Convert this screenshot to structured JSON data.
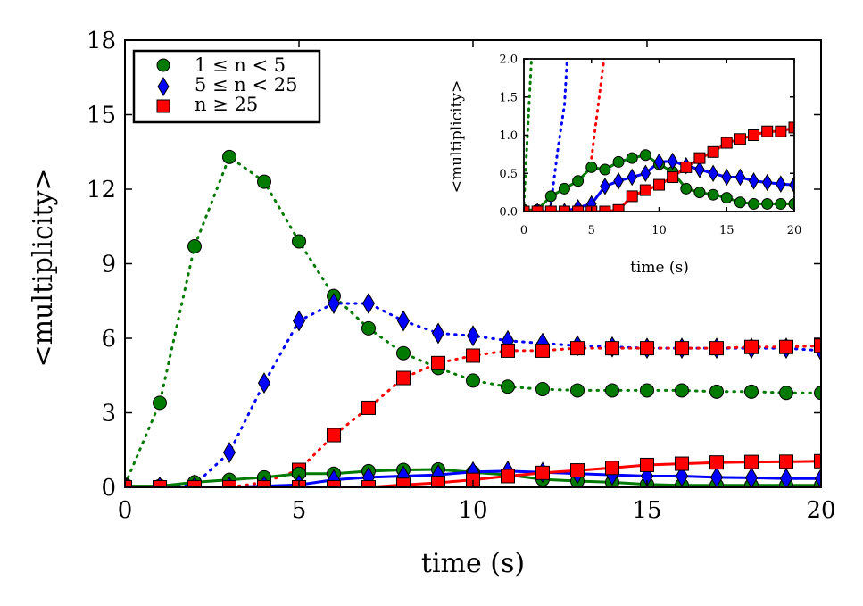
{
  "chart_data": [
    {
      "id": "main",
      "type": "line",
      "xlabel": "time (s)",
      "ylabel": "<multiplicity>",
      "xlim": [
        0,
        20
      ],
      "ylim": [
        0,
        18
      ],
      "xticks": [
        0,
        5,
        10,
        15,
        20
      ],
      "yticks": [
        0,
        3,
        6,
        9,
        12,
        15,
        18
      ],
      "legend_position": "top-left",
      "legend": [
        {
          "label": "1 ≤ n < 5",
          "color": "#007a00",
          "marker": "circle"
        },
        {
          "label": "5 ≤ n < 25",
          "color": "#0000ff",
          "marker": "diamond"
        },
        {
          "label": "n ≥ 25",
          "color": "#ff0000",
          "marker": "square"
        }
      ],
      "series": [
        {
          "name": "1 ≤ n < 5 (dotted)",
          "style": "dotted",
          "color": "#007a00",
          "marker": "circle",
          "x": [
            0,
            1,
            2,
            3,
            4,
            5,
            6,
            7,
            8,
            9,
            10,
            11,
            12,
            13,
            14,
            15,
            16,
            17,
            18,
            19,
            20
          ],
          "y": [
            0.1,
            3.4,
            9.7,
            13.3,
            12.3,
            9.9,
            7.7,
            6.4,
            5.4,
            4.8,
            4.3,
            4.05,
            3.95,
            3.9,
            3.9,
            3.9,
            3.9,
            3.85,
            3.85,
            3.8,
            3.8
          ]
        },
        {
          "name": "5 ≤ n < 25 (dotted)",
          "style": "dotted",
          "color": "#0000ff",
          "marker": "diamond",
          "x": [
            0,
            1,
            2,
            3,
            4,
            5,
            6,
            7,
            8,
            9,
            10,
            11,
            12,
            13,
            14,
            15,
            16,
            17,
            18,
            19,
            20
          ],
          "y": [
            0,
            0,
            0.1,
            1.4,
            4.2,
            6.7,
            7.4,
            7.4,
            6.7,
            6.2,
            6.1,
            5.9,
            5.8,
            5.7,
            5.65,
            5.6,
            5.6,
            5.6,
            5.6,
            5.6,
            5.5
          ]
        },
        {
          "name": "n ≥ 25 (dotted)",
          "style": "dotted",
          "color": "#ff0000",
          "marker": "square",
          "x": [
            0,
            1,
            2,
            3,
            4,
            5,
            6,
            7,
            8,
            9,
            10,
            11,
            12,
            13,
            14,
            15,
            16,
            17,
            18,
            19,
            20
          ],
          "y": [
            0,
            0,
            0,
            0,
            0.2,
            0.7,
            2.1,
            3.2,
            4.4,
            5.0,
            5.3,
            5.5,
            5.5,
            5.6,
            5.6,
            5.6,
            5.6,
            5.6,
            5.65,
            5.65,
            5.7
          ]
        },
        {
          "name": "1 ≤ n < 5 (solid)",
          "style": "solid",
          "color": "#007a00",
          "marker": "circle",
          "x": [
            0,
            1,
            2,
            3,
            4,
            5,
            6,
            7,
            8,
            9,
            10,
            11,
            12,
            13,
            14,
            15,
            16,
            17,
            18,
            19,
            20
          ],
          "y": [
            0.05,
            0.05,
            0.2,
            0.3,
            0.4,
            0.55,
            0.55,
            0.65,
            0.7,
            0.72,
            0.6,
            0.5,
            0.32,
            0.25,
            0.2,
            0.12,
            0.08,
            0.08,
            0.08,
            0.08,
            0.08
          ]
        },
        {
          "name": "5 ≤ n < 25 (solid)",
          "style": "solid",
          "color": "#0000ff",
          "marker": "diamond",
          "x": [
            0,
            1,
            2,
            3,
            4,
            5,
            6,
            7,
            8,
            9,
            10,
            11,
            12,
            13,
            14,
            15,
            16,
            17,
            18,
            19,
            20
          ],
          "y": [
            0,
            0,
            0,
            0,
            0.05,
            0.1,
            0.3,
            0.4,
            0.45,
            0.5,
            0.62,
            0.65,
            0.6,
            0.55,
            0.5,
            0.45,
            0.45,
            0.4,
            0.38,
            0.35,
            0.35
          ]
        },
        {
          "name": "n ≥ 25 (solid)",
          "style": "solid",
          "color": "#ff0000",
          "marker": "square",
          "x": [
            0,
            1,
            2,
            3,
            4,
            5,
            6,
            7,
            8,
            9,
            10,
            11,
            12,
            13,
            14,
            15,
            16,
            17,
            18,
            19,
            20
          ],
          "y": [
            0,
            0,
            0,
            0,
            0,
            0,
            0,
            0,
            0.1,
            0.18,
            0.3,
            0.45,
            0.58,
            0.68,
            0.78,
            0.9,
            0.95,
            1.0,
            1.02,
            1.03,
            1.05
          ]
        }
      ]
    },
    {
      "id": "inset",
      "type": "line",
      "xlabel": "time (s)",
      "ylabel": "<multiplicity>",
      "xlim": [
        0,
        20
      ],
      "ylim": [
        0,
        2.0
      ],
      "xticks": [
        0,
        5,
        10,
        15,
        20
      ],
      "yticks": [
        "0.0",
        "0.5",
        "1.0",
        "1.5",
        "2.0"
      ],
      "series": [
        {
          "name": "1 ≤ n < 5 (dotted)",
          "style": "dotted",
          "color": "#007a00",
          "marker": "none",
          "x": [
            0,
            0.5,
            1
          ],
          "y": [
            0.1,
            1.8,
            3.4
          ]
        },
        {
          "name": "5 ≤ n < 25 (dotted)",
          "style": "dotted",
          "color": "#0000ff",
          "marker": "none",
          "x": [
            2,
            2.5,
            3
          ],
          "y": [
            0.1,
            0.8,
            1.4
          ],
          "x2": [
            3,
            3.3
          ],
          "y2": [
            1.4,
            2.3
          ]
        },
        {
          "name": "n ≥ 25 (dotted)",
          "style": "dotted",
          "color": "#ff0000",
          "marker": "none",
          "x": [
            5,
            5.5,
            6
          ],
          "y": [
            0.7,
            1.4,
            2.1
          ]
        },
        {
          "name": "1 ≤ n < 5 (solid)",
          "style": "solid",
          "color": "#007a00",
          "marker": "circle",
          "x": [
            0,
            1,
            2,
            3,
            4,
            5,
            6,
            7,
            8,
            9,
            10,
            11,
            12,
            13,
            14,
            15,
            16,
            17,
            18,
            19,
            20
          ],
          "y": [
            0.02,
            0.02,
            0.2,
            0.3,
            0.4,
            0.58,
            0.55,
            0.65,
            0.7,
            0.74,
            0.62,
            0.52,
            0.3,
            0.25,
            0.22,
            0.18,
            0.12,
            0.1,
            0.1,
            0.1,
            0.1
          ]
        },
        {
          "name": "5 ≤ n < 25 (solid)",
          "style": "solid",
          "color": "#0000ff",
          "marker": "diamond",
          "x": [
            0,
            1,
            2,
            3,
            4,
            5,
            6,
            7,
            8,
            9,
            10,
            11,
            12,
            13,
            14,
            15,
            16,
            17,
            18,
            19,
            20
          ],
          "y": [
            0,
            0,
            0,
            0,
            0.05,
            0.1,
            0.33,
            0.4,
            0.45,
            0.5,
            0.65,
            0.66,
            0.6,
            0.55,
            0.5,
            0.45,
            0.45,
            0.4,
            0.38,
            0.36,
            0.35
          ]
        },
        {
          "name": "n ≥ 25 (solid)",
          "style": "solid",
          "color": "#ff0000",
          "marker": "square",
          "x": [
            0,
            1,
            2,
            3,
            4,
            5,
            6,
            7,
            8,
            9,
            10,
            11,
            12,
            13,
            14,
            15,
            16,
            17,
            18,
            19,
            20
          ],
          "y": [
            0,
            0,
            0,
            0,
            0,
            0,
            0,
            0.02,
            0.2,
            0.28,
            0.35,
            0.45,
            0.58,
            0.7,
            0.78,
            0.9,
            0.95,
            1.0,
            1.05,
            1.05,
            1.1
          ]
        }
      ]
    }
  ]
}
